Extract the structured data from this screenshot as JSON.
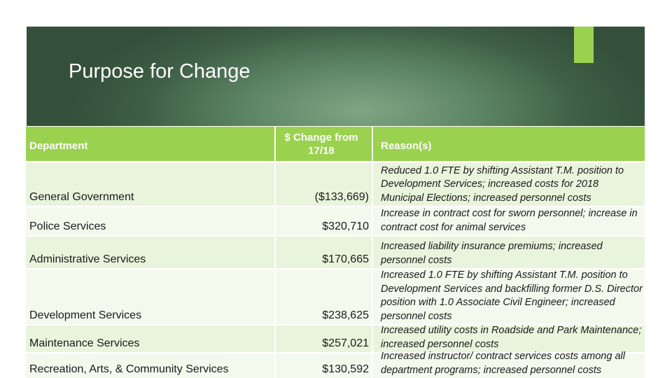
{
  "slide": {
    "title": "Purpose for Change"
  },
  "table": {
    "headers": {
      "department": "Department",
      "change": "$ Change from 17/18",
      "reasons": "Reason(s)"
    },
    "rows": [
      {
        "department": "General Government",
        "change": "($133,669)",
        "reason": "Reduced 1.0 FTE by shifting Assistant T.M. position to Development Services; increased costs for 2018 Municipal Elections; increased personnel costs"
      },
      {
        "department": "Police Services",
        "change": "$320,710",
        "reason": "Increase in contract cost for sworn personnel; increase in contract cost for  animal services"
      },
      {
        "department": "Administrative Services",
        "change": "$170,665",
        "reason": "Increased liability insurance premiums; increased personnel costs"
      },
      {
        "department": "Development Services",
        "change": "$238,625",
        "reason": "Increased 1.0 FTE by shifting Assistant T.M. position to Development Services and backfilling former D.S. Director position with 1.0 Associate Civil Engineer; increased personnel costs"
      },
      {
        "department": "Maintenance Services",
        "change": "$257,021",
        "reason": "Increased utility costs in Roadside and Park Maintenance; increased personnel costs"
      },
      {
        "department": "Recreation, Arts, & Community Services",
        "change": "$130,592",
        "reason": "Increased instructor/ contract services costs among all department programs; increased personnel costs"
      }
    ]
  },
  "colors": {
    "accent_green": "#9ad24f",
    "banner_dark": "#34503a",
    "row_light": "#e9f4dc"
  }
}
